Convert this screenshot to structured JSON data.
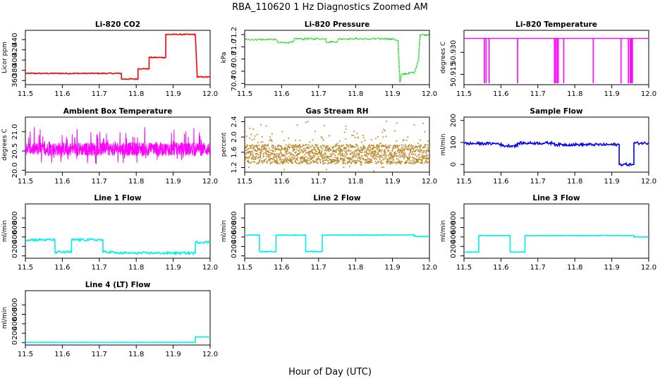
{
  "figure": {
    "title": "RBA_110620  1 Hz Diagnostics Zoomed AM",
    "xlabel": "Hour of Day (UTC)"
  },
  "chart_data": [
    {
      "type": "line",
      "title": "Li-820 CO2",
      "ylabel": "Licor ppm",
      "color": "#ff0000",
      "xlim": [
        11.5,
        12.0
      ],
      "ylim": [
        352,
        458
      ],
      "xticks": [
        "11.5",
        "11.6",
        "11.7",
        "11.8",
        "11.9",
        "12.0"
      ],
      "yticks": [
        360,
        380,
        400,
        420,
        440
      ],
      "series": [
        {
          "x": [
            11.5,
            11.76,
            11.76,
            11.805,
            11.805,
            11.835,
            11.835,
            11.88,
            11.88,
            11.96,
            11.965,
            12.0
          ],
          "y": [
            374,
            374,
            363,
            363,
            383,
            383,
            405,
            405,
            450,
            450,
            367,
            367
          ],
          "noise": 1
        }
      ]
    },
    {
      "type": "line",
      "title": "Li-820 Pressure",
      "ylabel": "kPa",
      "color": "#00cc00",
      "style": "dotted",
      "xlim": [
        11.5,
        12.0
      ],
      "ylim": [
        70.38,
        71.27
      ],
      "xticks": [
        "11.5",
        "11.6",
        "11.7",
        "11.8",
        "11.9",
        "12.0"
      ],
      "yticks": [
        "70.4",
        "70.6",
        "70.8",
        "71.0",
        "71.2"
      ],
      "series": [
        {
          "x": [
            11.5,
            11.585,
            11.59,
            11.63,
            11.635,
            11.7,
            11.72,
            11.72,
            11.75,
            11.755,
            11.9,
            11.915,
            11.92,
            11.925,
            11.96,
            11.97,
            11.975,
            12.0
          ],
          "y": [
            71.12,
            71.12,
            71.07,
            71.07,
            71.13,
            71.13,
            71.13,
            71.08,
            71.08,
            71.13,
            71.13,
            71.1,
            70.42,
            70.55,
            70.58,
            70.78,
            71.2,
            71.2
          ],
          "noise": 0.01
        }
      ]
    },
    {
      "type": "line",
      "title": "Li-820 Temperature",
      "ylabel": "degrees C",
      "color": "#ff00ff",
      "xlim": [
        11.5,
        12.0
      ],
      "ylim": [
        50.908,
        50.945
      ],
      "xticks": [
        "11.5",
        "11.6",
        "11.7",
        "11.8",
        "11.9",
        "12.0"
      ],
      "yticks": [
        "50.915",
        "50.930"
      ],
      "baseline": 50.9395,
      "dips": [
        11.555,
        11.56,
        11.568,
        11.645,
        11.745,
        11.748,
        11.752,
        11.755,
        11.77,
        11.85,
        11.925,
        11.945,
        11.95,
        11.953,
        11.956
      ],
      "dip_value": 50.909
    },
    {
      "type": "line",
      "title": "Ambient Box Temperature",
      "ylabel": "degrees C",
      "color": "#ff00ff",
      "xlim": [
        11.5,
        12.0
      ],
      "ylim": [
        19.95,
        21.38
      ],
      "xticks": [
        "11.5",
        "11.6",
        "11.7",
        "11.8",
        "11.9",
        "12.0"
      ],
      "yticks": [
        "20.0",
        "20.5",
        "21.0"
      ],
      "band": {
        "center": 20.55,
        "spread": 0.35,
        "spikes": 0.75
      }
    },
    {
      "type": "scatter",
      "title": "Gas Stream RH",
      "ylabel": "percent",
      "color": "#ffa500",
      "edge": "#555555",
      "xlim": [
        11.5,
        12.0
      ],
      "ylim": [
        1.08,
        2.52
      ],
      "xticks": [
        "11.5",
        "11.6",
        "11.7",
        "11.8",
        "11.9",
        "12.0"
      ],
      "yticks": [
        "1.2",
        "1.6",
        "2.0",
        "2.4"
      ],
      "band": {
        "center": 1.55,
        "spread": 0.5,
        "spikes": 0.95
      }
    },
    {
      "type": "line",
      "title": "Sample Flow",
      "ylabel": "ml/min",
      "color": "#0000ee",
      "xlim": [
        11.5,
        12.0
      ],
      "ylim": [
        -35,
        215
      ],
      "xticks": [
        "11.5",
        "11.6",
        "11.7",
        "11.8",
        "11.9",
        "12.0"
      ],
      "yticks": [
        0,
        100,
        200
      ],
      "series": [
        {
          "x": [
            11.5,
            11.6,
            11.6,
            11.645,
            11.645,
            11.745,
            11.745,
            11.92,
            11.92,
            11.96,
            11.96,
            12.0
          ],
          "y": [
            95,
            95,
            85,
            85,
            97,
            97,
            90,
            90,
            0,
            0,
            97,
            97
          ],
          "noise": 6
        }
      ]
    },
    {
      "type": "line",
      "title": "Line 1 Flow",
      "ylabel": "ml/min",
      "color": "#00eeee",
      "xlim": [
        11.5,
        12.0
      ],
      "ylim": [
        -50,
        1100
      ],
      "xticks": [
        "11.5",
        "11.6",
        "11.7",
        "11.8",
        "11.9",
        "12.0"
      ],
      "yticks": [
        0,
        200,
        400,
        600,
        800
      ],
      "series": [
        {
          "x": [
            11.5,
            11.58,
            11.58,
            11.625,
            11.625,
            11.71,
            11.71,
            11.74,
            11.74,
            11.96,
            11.96,
            12.0
          ],
          "y": [
            340,
            340,
            80,
            80,
            340,
            340,
            80,
            80,
            60,
            60,
            290,
            290
          ],
          "noise": 25
        }
      ]
    },
    {
      "type": "line",
      "title": "Line 2 Flow",
      "ylabel": "ml/min",
      "color": "#00eeee",
      "xlim": [
        11.5,
        12.0
      ],
      "ylim": [
        -50,
        1100
      ],
      "xticks": [
        "11.5",
        "11.6",
        "11.7",
        "11.8",
        "11.9",
        "12.0"
      ],
      "yticks": [
        0,
        200,
        400,
        600,
        800
      ],
      "series": [
        {
          "x": [
            11.5,
            11.54,
            11.54,
            11.585,
            11.585,
            11.665,
            11.665,
            11.71,
            11.71,
            11.96,
            11.96,
            12.0
          ],
          "y": [
            440,
            440,
            90,
            90,
            440,
            440,
            90,
            90,
            440,
            440,
            410,
            410
          ],
          "noise": 8
        }
      ]
    },
    {
      "type": "line",
      "title": "Line 3 Flow",
      "ylabel": "ml/min",
      "color": "#00eeee",
      "xlim": [
        11.5,
        12.0
      ],
      "ylim": [
        -50,
        1100
      ],
      "xticks": [
        "11.5",
        "11.6",
        "11.7",
        "11.8",
        "11.9",
        "12.0"
      ],
      "yticks": [
        0,
        200,
        400,
        600,
        800
      ],
      "series": [
        {
          "x": [
            11.5,
            11.54,
            11.54,
            11.625,
            11.625,
            11.665,
            11.665,
            11.96,
            11.96,
            12.0
          ],
          "y": [
            80,
            80,
            430,
            430,
            80,
            80,
            430,
            430,
            400,
            400
          ],
          "noise": 6
        }
      ]
    },
    {
      "type": "line",
      "title": "Line 4 (LT) Flow",
      "ylabel": "ml/min",
      "color": "#00eeee",
      "xlim": [
        11.5,
        12.0
      ],
      "ylim": [
        -50,
        1100
      ],
      "xticks": [
        "11.5",
        "11.6",
        "11.7",
        "11.8",
        "11.9",
        "12.0"
      ],
      "yticks": [
        0,
        200,
        400,
        600,
        800
      ],
      "series": [
        {
          "x": [
            11.5,
            11.96,
            11.96,
            12.0
          ],
          "y": [
            5,
            5,
            120,
            120
          ],
          "noise": 2
        }
      ]
    }
  ]
}
